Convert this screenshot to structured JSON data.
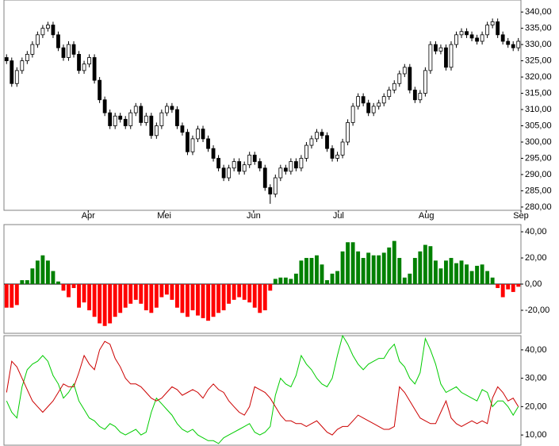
{
  "chart_data": [
    {
      "type": "candlestick",
      "xlim": [
        0,
        100
      ],
      "xticks": [
        {
          "value": 16.3,
          "label": "Apr"
        },
        {
          "value": 31,
          "label": "Mei"
        },
        {
          "value": 48.3,
          "label": "Jun"
        },
        {
          "value": 64.7,
          "label": "Jul"
        },
        {
          "value": 81.7,
          "label": "Aug"
        },
        {
          "value": 100,
          "label": "Sep"
        }
      ],
      "ylim": [
        279,
        343.7
      ],
      "yticks": [
        {
          "value": 280,
          "label": "280,00"
        },
        {
          "value": 285,
          "label": "285,00"
        },
        {
          "value": 290,
          "label": "290,00"
        },
        {
          "value": 295,
          "label": "295,00"
        },
        {
          "value": 300,
          "label": "300,00"
        },
        {
          "value": 305,
          "label": "305,00"
        },
        {
          "value": 310,
          "label": "310,00"
        },
        {
          "value": 315,
          "label": "315,00"
        },
        {
          "value": 320,
          "label": "320,00"
        },
        {
          "value": 325,
          "label": "325,00"
        },
        {
          "value": 330,
          "label": "330,00"
        },
        {
          "value": 335,
          "label": "335,00"
        },
        {
          "value": 340,
          "label": "340,00"
        }
      ],
      "up_color": "#ffffff",
      "down_color": "#000000",
      "open": [
        326,
        325,
        318,
        322,
        325,
        327,
        330,
        333,
        335,
        336,
        333,
        329,
        326,
        330,
        327,
        322,
        324,
        326,
        319,
        313,
        309,
        305,
        308,
        307,
        305,
        309,
        311,
        306,
        308,
        302,
        305,
        309,
        311,
        310,
        305,
        303,
        297,
        301,
        304,
        301,
        298,
        295,
        292,
        289,
        292,
        294,
        291,
        293,
        296,
        294,
        292,
        286,
        284,
        289,
        292,
        291,
        294,
        292,
        295,
        299,
        301,
        303,
        302,
        298,
        295,
        296,
        300,
        306,
        311,
        314,
        312,
        309,
        311,
        312,
        314,
        316,
        318,
        321,
        323,
        316,
        313,
        315,
        322,
        330,
        328,
        329,
        323,
        330,
        333,
        334,
        333,
        332,
        331,
        333,
        336,
        337,
        333,
        331,
        330,
        329
      ],
      "high": [
        327,
        326,
        323,
        326,
        328,
        331,
        334,
        336,
        337,
        337,
        334,
        330,
        331,
        331,
        328,
        325,
        327,
        327,
        320,
        314,
        310,
        309,
        309,
        308,
        310,
        312,
        312,
        309,
        309,
        306,
        310,
        312,
        312,
        311,
        306,
        304,
        302,
        305,
        305,
        302,
        299,
        296,
        293,
        293,
        295,
        295,
        294,
        297,
        297,
        295,
        293,
        287,
        290,
        293,
        293,
        295,
        295,
        296,
        300,
        302,
        304,
        304,
        303,
        299,
        297,
        301,
        307,
        312,
        315,
        315,
        313,
        312,
        313,
        315,
        317,
        319,
        322,
        324,
        324,
        317,
        316,
        323,
        331,
        331,
        330,
        330,
        331,
        334,
        335,
        335,
        334,
        333,
        334,
        337,
        338,
        338,
        334,
        332,
        331,
        332
      ],
      "low": [
        324,
        317,
        317,
        321,
        324,
        326,
        329,
        332,
        334,
        332,
        328,
        325,
        325,
        326,
        321,
        321,
        323,
        318,
        312,
        308,
        304,
        304,
        306,
        304,
        304,
        308,
        305,
        305,
        301,
        301,
        304,
        308,
        309,
        304,
        302,
        296,
        296,
        300,
        300,
        297,
        294,
        291,
        288,
        288,
        291,
        290,
        290,
        292,
        293,
        291,
        285,
        281,
        283,
        288,
        290,
        290,
        291,
        291,
        294,
        298,
        300,
        301,
        297,
        294,
        294,
        295,
        299,
        305,
        310,
        311,
        308,
        308,
        310,
        311,
        313,
        315,
        317,
        320,
        315,
        312,
        312,
        314,
        321,
        327,
        327,
        322,
        322,
        329,
        332,
        332,
        331,
        330,
        330,
        332,
        335,
        332,
        330,
        329,
        328,
        328
      ],
      "close": [
        325,
        318,
        322,
        325,
        327,
        330,
        333,
        335,
        336,
        333,
        329,
        326,
        330,
        327,
        322,
        324,
        326,
        319,
        313,
        309,
        305,
        308,
        307,
        305,
        309,
        311,
        306,
        308,
        302,
        305,
        309,
        311,
        310,
        305,
        303,
        297,
        301,
        304,
        301,
        298,
        295,
        292,
        289,
        292,
        294,
        291,
        293,
        296,
        294,
        292,
        286,
        284,
        289,
        292,
        291,
        294,
        292,
        295,
        299,
        301,
        303,
        302,
        298,
        295,
        296,
        300,
        306,
        311,
        314,
        312,
        309,
        311,
        312,
        314,
        316,
        318,
        321,
        323,
        316,
        313,
        315,
        322,
        330,
        328,
        329,
        323,
        330,
        333,
        334,
        333,
        332,
        331,
        333,
        336,
        337,
        333,
        331,
        330,
        329,
        331
      ]
    },
    {
      "type": "bar",
      "xlim": [
        0,
        100
      ],
      "ylim": [
        -37.6,
        45.5
      ],
      "yticks": [
        {
          "value": -20,
          "label": "-20,00"
        },
        {
          "value": 0,
          "label": "0,00"
        },
        {
          "value": 20,
          "label": "20,00"
        },
        {
          "value": 40,
          "label": "40,00"
        }
      ],
      "positive_color": "#008000",
      "negative_color": "#ff0000",
      "values": [
        -18,
        -18,
        -16,
        3,
        3,
        12,
        18,
        22,
        18,
        10,
        2,
        -5,
        -10,
        -3,
        -18,
        -14,
        -20,
        -25,
        -30,
        -32,
        -30,
        -25,
        -22,
        -18,
        -15,
        -12,
        -15,
        -20,
        -22,
        -18,
        -10,
        -8,
        -12,
        -18,
        -22,
        -25,
        -20,
        -24,
        -26,
        -28,
        -25,
        -22,
        -20,
        -15,
        -12,
        -10,
        -12,
        -14,
        -18,
        -22,
        -20,
        -5,
        4,
        5,
        5,
        4,
        8,
        18,
        20,
        20,
        22,
        15,
        3,
        8,
        10,
        25,
        32,
        32,
        25,
        20,
        24,
        22,
        22,
        24,
        28,
        33,
        20,
        5,
        8,
        20,
        25,
        30,
        29,
        18,
        12,
        18,
        20,
        16,
        18,
        15,
        10,
        14,
        15,
        10,
        5,
        -3,
        -10,
        -4,
        -6,
        -2
      ]
    },
    {
      "type": "line",
      "xlim": [
        0,
        100
      ],
      "ylim": [
        6.4,
        45
      ],
      "yticks": [
        {
          "value": 10,
          "label": "10,00"
        },
        {
          "value": 20,
          "label": "20,00"
        },
        {
          "value": 30,
          "label": "30,00"
        },
        {
          "value": 40,
          "label": "40,00"
        }
      ],
      "series": [
        {
          "color": "#00cc00",
          "values": [
            22,
            18,
            16,
            27,
            33,
            35,
            36,
            38,
            36,
            31,
            28,
            23,
            25,
            28,
            22,
            19,
            16,
            15,
            13,
            12,
            14,
            13,
            11,
            10,
            11,
            12,
            10,
            11,
            18,
            23,
            21,
            19,
            17,
            14,
            12,
            11,
            12,
            10,
            9,
            8,
            8,
            7,
            9,
            10,
            11,
            12,
            13,
            14,
            11,
            10,
            11,
            13,
            24,
            30,
            28,
            27,
            31,
            38,
            35,
            33,
            30,
            28,
            27,
            30,
            38,
            45,
            42,
            38,
            35,
            33,
            35,
            36,
            37,
            37,
            40,
            42,
            36,
            34,
            30,
            28,
            32,
            44,
            40,
            35,
            28,
            25,
            26,
            27,
            25,
            24,
            23,
            22,
            26,
            25,
            20,
            22,
            22,
            20,
            17,
            20
          ]
        },
        {
          "color": "#cc0000",
          "values": [
            25,
            36,
            34,
            30,
            26,
            22,
            20,
            18,
            20,
            22,
            25,
            28,
            27,
            27,
            32,
            38,
            35,
            33,
            40,
            43,
            42,
            37,
            34,
            30,
            28,
            28,
            27,
            25,
            23,
            22,
            23,
            25,
            27,
            26,
            24,
            25,
            26,
            25,
            23,
            26,
            28,
            26,
            25,
            22,
            20,
            18,
            17,
            20,
            27,
            26,
            25,
            23,
            20,
            17,
            15,
            15,
            14,
            14,
            13,
            14,
            15,
            13,
            11,
            10,
            12,
            13,
            13,
            15,
            17,
            16,
            15,
            14,
            13,
            12,
            12,
            13,
            27,
            25,
            22,
            19,
            16,
            15,
            14,
            14,
            18,
            22,
            16,
            14,
            13,
            14,
            15,
            14,
            15,
            14,
            23,
            27,
            25,
            22,
            23,
            20
          ]
        }
      ]
    }
  ]
}
